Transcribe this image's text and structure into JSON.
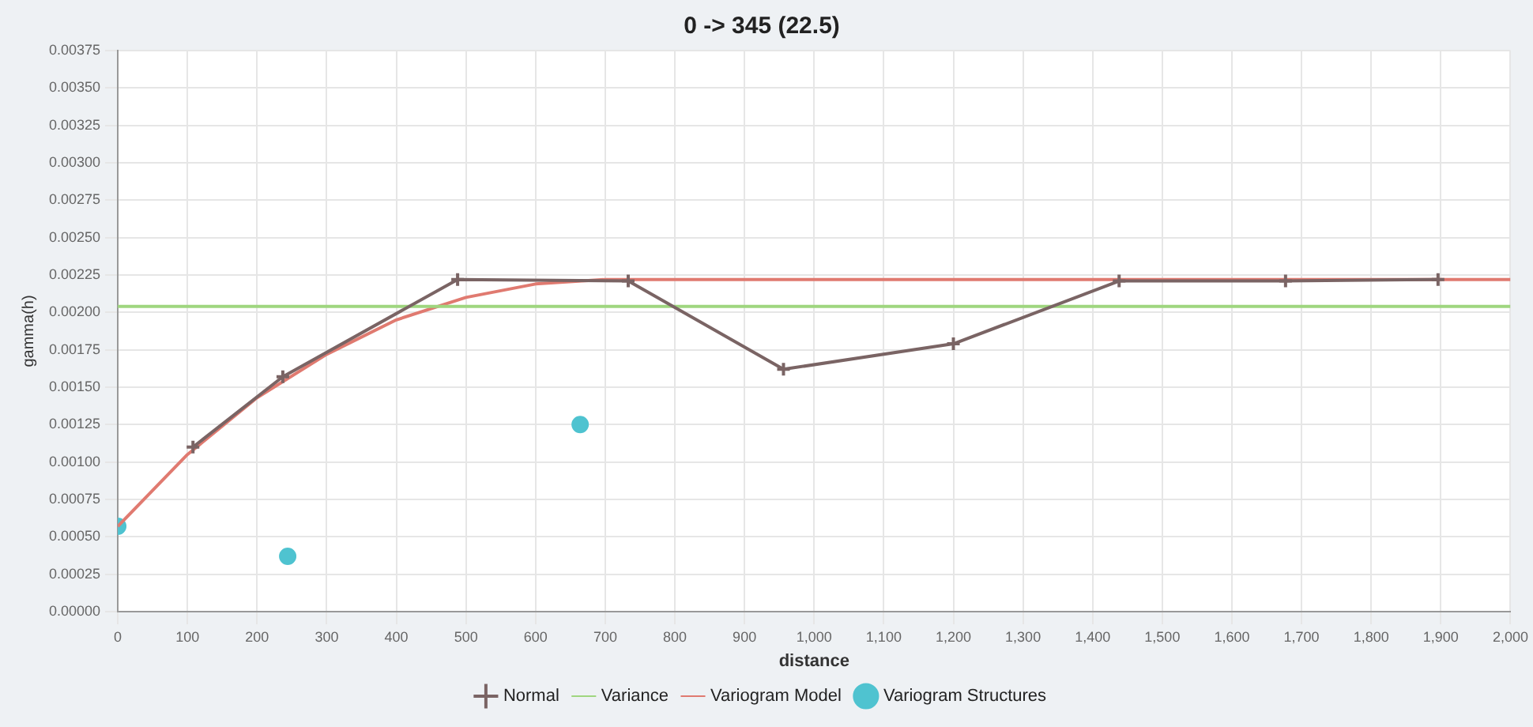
{
  "chart_data": {
    "type": "line",
    "title": "0 -> 345 (22.5)",
    "xlabel": "distance",
    "ylabel": "gamma(h)",
    "xlim": [
      0,
      2000
    ],
    "xticks": [
      0,
      100,
      200,
      300,
      400,
      500,
      600,
      700,
      800,
      900,
      {
        "value": 1000,
        "label": "1,000"
      },
      {
        "value": 1100,
        "label": "1,100"
      },
      {
        "value": 1200,
        "label": "1,200"
      },
      {
        "value": 1300,
        "label": "1,300"
      },
      {
        "value": 1400,
        "label": "1,400"
      },
      {
        "value": 1500,
        "label": "1,500"
      },
      {
        "value": 1600,
        "label": "1,600"
      },
      {
        "value": 1700,
        "label": "1,700"
      },
      {
        "value": 1800,
        "label": "1,800"
      },
      {
        "value": 1900,
        "label": "1,900"
      },
      {
        "value": 2000,
        "label": "2,000"
      }
    ],
    "ylim": [
      0,
      0.00375
    ],
    "yticks": [
      {
        "value": 0,
        "label": "0.00000"
      },
      {
        "value": 0.00025,
        "label": "0.00025"
      },
      {
        "value": 0.0005,
        "label": "0.00050"
      },
      {
        "value": 0.00075,
        "label": "0.00075"
      },
      {
        "value": 0.001,
        "label": "0.00100"
      },
      {
        "value": 0.00125,
        "label": "0.00125"
      },
      {
        "value": 0.0015,
        "label": "0.00150"
      },
      {
        "value": 0.00175,
        "label": "0.00175"
      },
      {
        "value": 0.002,
        "label": "0.00200"
      },
      {
        "value": 0.00225,
        "label": "0.00225"
      },
      {
        "value": 0.0025,
        "label": "0.00250"
      },
      {
        "value": 0.00275,
        "label": "0.00275"
      },
      {
        "value": 0.003,
        "label": "0.00300"
      },
      {
        "value": 0.00325,
        "label": "0.00325"
      },
      {
        "value": 0.0035,
        "label": "0.00350"
      },
      {
        "value": 0.00375,
        "label": "0.00375"
      }
    ],
    "grid": true,
    "legend": "bottom",
    "series": [
      {
        "name": "Normal",
        "color": "#7a6464",
        "marker": "cross",
        "x": [
          108,
          237,
          488,
          733,
          956,
          1200,
          1438,
          1677,
          1896
        ],
        "values": [
          0.0011,
          0.00157,
          0.00222,
          0.00221,
          0.00162,
          0.00179,
          0.00221,
          0.00221,
          0.00222
        ]
      },
      {
        "name": "Variance",
        "color": "#9fd67f",
        "marker": "none",
        "x": [
          0,
          2000
        ],
        "values": [
          0.00204,
          0.00204
        ]
      },
      {
        "name": "Variogram Model",
        "color": "#e07a70",
        "marker": "none",
        "x": [
          0,
          100,
          200,
          300,
          400,
          500,
          600,
          700,
          2000
        ],
        "values": [
          0.00057,
          0.00105,
          0.00143,
          0.00172,
          0.00195,
          0.0021,
          0.00219,
          0.00222,
          0.00222
        ]
      },
      {
        "name": "Variogram Structures",
        "type": "scatter",
        "color": "#4fc3d0",
        "marker": "circle",
        "x": [
          0,
          244,
          664
        ],
        "values": [
          0.00057,
          0.00037,
          0.00125
        ]
      }
    ]
  }
}
